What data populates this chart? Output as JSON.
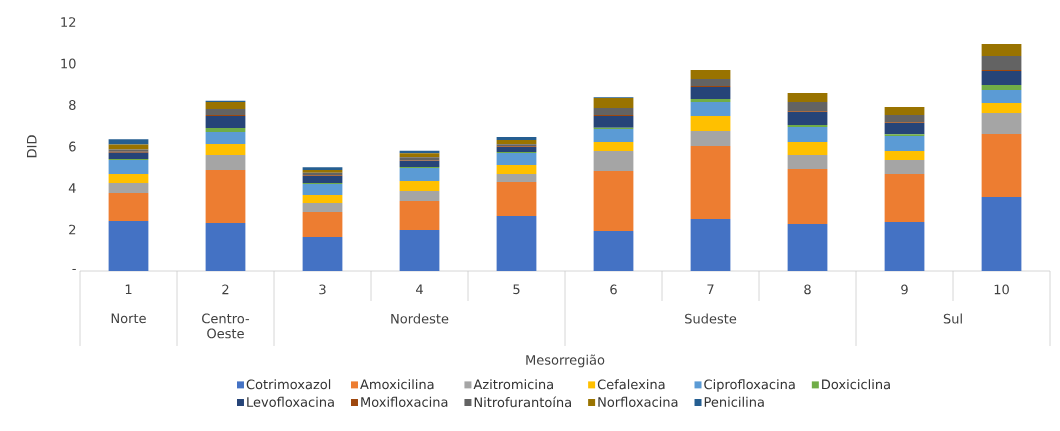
{
  "chart_data": {
    "type": "bar",
    "stacked": true,
    "xlabel": "Mesorregião",
    "ylabel": "DID",
    "categories": [
      "1",
      "2",
      "3",
      "4",
      "5",
      "6",
      "7",
      "8",
      "9",
      "10"
    ],
    "ylim": [
      0,
      12
    ],
    "yticks": [
      {
        "value": 0,
        "label": "-"
      },
      2,
      4,
      6,
      8,
      10,
      12
    ],
    "legend": "bottom",
    "annotations": [
      "Norte",
      "Centro-Oeste",
      "Nordeste",
      "Sudeste",
      "Sul"
    ],
    "series": [
      {
        "name": "Cotrimoxazol",
        "color": "#4472c4",
        "values": [
          2.41,
          2.31,
          1.64,
          1.98,
          2.65,
          1.93,
          2.51,
          2.27,
          2.36,
          3.57
        ]
      },
      {
        "name": "Amoxicilina",
        "color": "#ed7d31",
        "values": [
          1.35,
          2.56,
          1.2,
          1.39,
          1.64,
          2.89,
          3.51,
          2.65,
          2.31,
          3.03
        ]
      },
      {
        "name": "Azitromicina",
        "color": "#a5a5a5",
        "values": [
          0.48,
          0.72,
          0.44,
          0.49,
          0.38,
          0.96,
          0.73,
          0.67,
          0.68,
          1.01
        ]
      },
      {
        "name": "Cefalexina",
        "color": "#ffc000",
        "values": [
          0.43,
          0.53,
          0.38,
          0.48,
          0.44,
          0.44,
          0.72,
          0.63,
          0.43,
          0.49
        ]
      },
      {
        "name": "Ciprofloxacina",
        "color": "#5b9bd5",
        "values": [
          0.68,
          0.58,
          0.53,
          0.62,
          0.58,
          0.62,
          0.67,
          0.72,
          0.73,
          0.62
        ]
      },
      {
        "name": "Doxiciclina",
        "color": "#70ad47",
        "values": [
          0.05,
          0.19,
          0.05,
          0.05,
          0.05,
          0.06,
          0.15,
          0.1,
          0.08,
          0.24
        ]
      },
      {
        "name": "Levofloxacina",
        "color": "#264478",
        "values": [
          0.3,
          0.58,
          0.34,
          0.29,
          0.24,
          0.57,
          0.58,
          0.62,
          0.54,
          0.68
        ]
      },
      {
        "name": "Moxifloxacina",
        "color": "#9e480e",
        "values": [
          0.05,
          0.05,
          0.03,
          0.03,
          0.03,
          0.05,
          0.05,
          0.04,
          0.04,
          0.05
        ]
      },
      {
        "name": "Nitrofurantoína",
        "color": "#636363",
        "values": [
          0.1,
          0.29,
          0.12,
          0.15,
          0.1,
          0.34,
          0.33,
          0.44,
          0.35,
          0.67
        ]
      },
      {
        "name": "Norfloxacina",
        "color": "#997300",
        "values": [
          0.25,
          0.33,
          0.14,
          0.2,
          0.2,
          0.48,
          0.44,
          0.44,
          0.38,
          0.58
        ]
      },
      {
        "name": "Penicilina",
        "color": "#255e91",
        "values": [
          0.25,
          0.06,
          0.13,
          0.12,
          0.15,
          0.03,
          null,
          null,
          null,
          null
        ]
      }
    ]
  }
}
